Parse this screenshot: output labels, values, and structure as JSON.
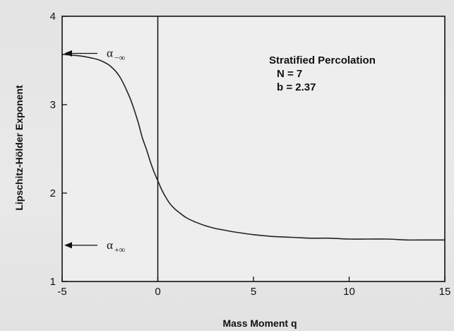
{
  "chart_data": {
    "type": "line",
    "title": "",
    "xlabel": "Mass Moment q",
    "ylabel": "Lipschitz-Hölder Exponent",
    "xlim": [
      -5,
      15
    ],
    "ylim": [
      1,
      4
    ],
    "xticks": [
      -5,
      0,
      5,
      10,
      15
    ],
    "yticks": [
      1,
      2,
      3,
      4
    ],
    "grid": false,
    "series": [
      {
        "name": "",
        "x": [
          -5,
          -4.5,
          -4,
          -3.5,
          -3,
          -2.5,
          -2,
          -1.5,
          -1.2,
          -1,
          -0.8,
          -0.6,
          -0.4,
          -0.2,
          0,
          0.2,
          0.4,
          0.6,
          0.8,
          1,
          1.5,
          2,
          2.5,
          3,
          3.5,
          4,
          5,
          6,
          7,
          8,
          9,
          10,
          11,
          12,
          13,
          14,
          15
        ],
        "y": [
          3.57,
          3.56,
          3.55,
          3.53,
          3.5,
          3.44,
          3.32,
          3.1,
          2.92,
          2.78,
          2.62,
          2.5,
          2.36,
          2.24,
          2.14,
          2.04,
          1.96,
          1.89,
          1.84,
          1.8,
          1.72,
          1.67,
          1.63,
          1.6,
          1.58,
          1.56,
          1.53,
          1.51,
          1.5,
          1.49,
          1.49,
          1.48,
          1.48,
          1.48,
          1.47,
          1.47,
          1.47
        ]
      }
    ],
    "vertical_line_x": 0,
    "annotations": {
      "info_lines": [
        "Stratified Percolation",
        "N = 7",
        "b = 2.37"
      ],
      "alpha_minus": {
        "symbol": "α",
        "subscript": "−∞",
        "y": 3.58
      },
      "alpha_plus": {
        "symbol": "α",
        "subscript": "+∞",
        "y": 1.41
      }
    }
  },
  "colors": {
    "line": "#222222",
    "axis": "#111111",
    "plot_background": "#eeeeee"
  }
}
